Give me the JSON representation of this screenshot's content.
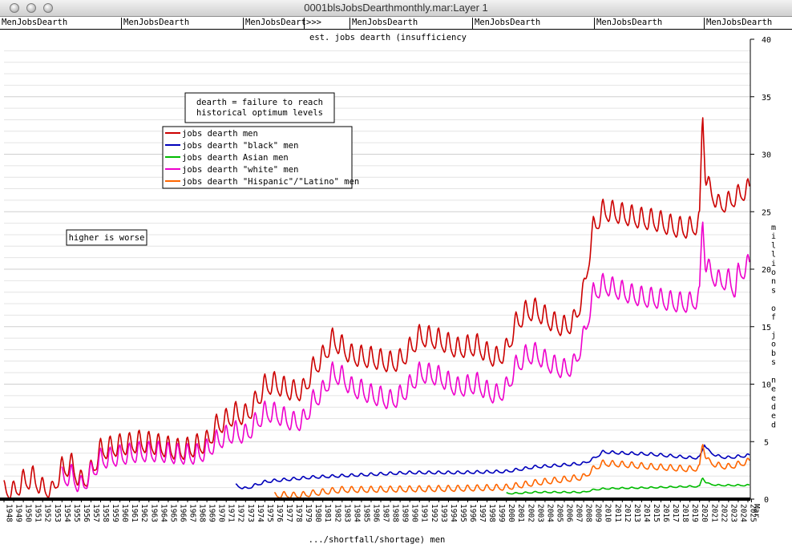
{
  "window": {
    "title": "0001blsJobsDearthmonthly.mar:Layer 1"
  },
  "tabs": [
    {
      "label": "MenJobsDearth"
    },
    {
      "label": "MenJobsDearth"
    },
    {
      "label": "MenJobsDeart"
    },
    {
      "label": ">>>"
    },
    {
      "label": "MenJobsDearth"
    },
    {
      "label": "MenJobsDearth"
    },
    {
      "label": "MenJobsDearth"
    },
    {
      "label": "MenJobsDearth"
    }
  ],
  "chart_data": {
    "type": "line",
    "title": "est. jobs dearth (insufficiency",
    "xlabel": ".../shortfall/shortage) men",
    "ylabel": "millions of jobs needed",
    "ylim": [
      0,
      40
    ],
    "y_ticks": [
      0,
      5,
      10,
      15,
      20,
      25,
      30,
      35,
      40
    ],
    "x_start": 1948,
    "x_end": 2025.25,
    "x_tick_labels": [
      "1948",
      "1949",
      "1950",
      "1951",
      "1952",
      "1953",
      "1954",
      "1955",
      "1956",
      "1957",
      "1958",
      "1959",
      "1960",
      "1961",
      "1962",
      "1963",
      "1964",
      "1965",
      "1966",
      "1967",
      "1968",
      "1969",
      "1970",
      "1971",
      "1972",
      "1973",
      "1974",
      "1975",
      "1976",
      "1977",
      "1978",
      "1979",
      "1980",
      "1981",
      "1982",
      "1983",
      "1984",
      "1985",
      "1986",
      "1987",
      "1988",
      "1989",
      "1990",
      "1991",
      "1992",
      "1993",
      "1994",
      "1995",
      "1996",
      "1997",
      "1998",
      "1999",
      "2000",
      "2001",
      "2002",
      "2003",
      "2004",
      "2005",
      "2006",
      "2007",
      "2008",
      "2009",
      "2010",
      "2011",
      "2012",
      "2013",
      "2014",
      "2015",
      "2016",
      "2017",
      "2018",
      "2019",
      "2020",
      "2021",
      "2022",
      "2023",
      "2024",
      "2025",
      "Mar"
    ],
    "annotations": [
      {
        "text": "dearth = failure to reach historical optimum levels",
        "lines": [
          "dearth = failure to reach",
          "historical optimum levels"
        ]
      },
      {
        "text": "higher is worse",
        "lines": [
          "higher is worse"
        ]
      }
    ],
    "legend_position": "upper-left",
    "grid": true,
    "series": [
      {
        "name": "jobs dearth men",
        "color": "#cc0000",
        "years": [
          1948,
          1949,
          1950,
          1951,
          1952,
          1953,
          1954,
          1955,
          1956,
          1957,
          1958,
          1959,
          1960,
          1961,
          1962,
          1963,
          1964,
          1965,
          1966,
          1967,
          1968,
          1969,
          1970,
          1971,
          1972,
          1973,
          1974,
          1975,
          1976,
          1977,
          1978,
          1979,
          1980,
          1981,
          1982,
          1983,
          1984,
          1985,
          1986,
          1987,
          1988,
          1989,
          1990,
          1991,
          1992,
          1993,
          1994,
          1995,
          1996,
          1997,
          1998,
          1999,
          2000,
          2001,
          2002,
          2003,
          2004,
          2005,
          2006,
          2007,
          2008,
          2009,
          2010,
          2011,
          2012,
          2013,
          2014,
          2015,
          2016,
          2017,
          2018,
          2019,
          2020,
          2020.3,
          2020.6,
          2021,
          2022,
          2023,
          2024,
          2025.2
        ],
        "values": [
          0.8,
          0.6,
          1.5,
          1.8,
          0.9,
          0.7,
          2.6,
          2.9,
          1.4,
          2.3,
          4.2,
          4.4,
          4.6,
          4.7,
          4.9,
          4.8,
          4.6,
          4.4,
          4.2,
          4.3,
          4.6,
          4.9,
          6.3,
          6.8,
          7.4,
          7.2,
          8.3,
          9.8,
          10.0,
          9.6,
          9.3,
          9.4,
          11.3,
          12.3,
          13.8,
          13.2,
          12.4,
          12.3,
          12.2,
          12.0,
          11.8,
          12.0,
          13.0,
          14.1,
          14.0,
          13.8,
          13.4,
          13.0,
          13.2,
          13.3,
          12.6,
          12.2,
          12.9,
          15.2,
          16.2,
          16.4,
          15.8,
          15.2,
          14.9,
          15.4,
          18.0,
          23.5,
          25.0,
          24.9,
          24.7,
          24.5,
          24.3,
          24.2,
          24.0,
          23.7,
          23.5,
          23.5,
          24.0,
          34.0,
          28.0,
          27.0,
          25.5,
          25.8,
          26.4,
          27.0
        ],
        "amplitude": [
          0.7,
          0.8,
          0.9,
          0.9,
          0.8,
          0.7,
          0.9,
          0.9,
          0.9,
          0.9,
          0.9,
          0.9,
          0.9,
          0.9,
          0.9,
          0.9,
          0.9,
          0.9,
          0.9,
          0.9,
          0.9,
          0.9,
          0.9,
          0.9,
          0.9,
          0.9,
          0.9,
          0.9,
          0.9,
          0.9,
          0.9,
          0.9,
          0.9,
          0.9,
          0.9,
          0.9,
          0.9,
          0.9,
          0.9,
          0.9,
          0.9,
          0.9,
          0.9,
          0.9,
          0.9,
          0.9,
          0.9,
          0.9,
          0.9,
          0.9,
          0.9,
          0.9,
          0.9,
          0.9,
          0.9,
          0.9,
          0.9,
          0.9,
          0.9,
          0.9,
          0.9,
          0.9,
          0.9,
          0.9,
          0.9,
          0.9,
          0.9,
          0.9,
          0.9,
          0.9,
          0.9,
          0.9,
          0.9,
          0.3,
          0.7,
          0.8,
          0.8,
          0.8,
          0.8,
          0.8
        ]
      },
      {
        "name": "jobs dearth \"black\" men",
        "color": "#0000bb",
        "years": [
          1972,
          1973,
          1974,
          1975,
          1976,
          1980,
          1985,
          1990,
          1995,
          2000,
          2003,
          2005,
          2008,
          2009,
          2010,
          2012,
          2015,
          2019,
          2020,
          2020.5,
          2021,
          2022,
          2023,
          2024,
          2025.2
        ],
        "values": [
          1.2,
          0.9,
          1.2,
          1.5,
          1.6,
          1.9,
          2.1,
          2.3,
          2.3,
          2.4,
          2.8,
          2.9,
          3.1,
          3.5,
          4.1,
          4.0,
          3.9,
          3.6,
          3.6,
          4.8,
          4.1,
          3.7,
          3.6,
          3.7,
          3.8
        ],
        "amplitude": 0.12
      },
      {
        "name": "jobs dearth Asian men",
        "color": "#00bb00",
        "years": [
          2000,
          2001,
          2003,
          2005,
          2008,
          2009,
          2010,
          2012,
          2015,
          2019,
          2020,
          2020.3,
          2020.6,
          2021,
          2022,
          2023,
          2024,
          2025.2
        ],
        "values": [
          0.5,
          0.5,
          0.6,
          0.6,
          0.6,
          0.8,
          0.9,
          0.95,
          1.0,
          1.1,
          1.1,
          1.9,
          1.5,
          1.3,
          1.2,
          1.2,
          1.2,
          1.2
        ],
        "amplitude": 0.06
      },
      {
        "name": "jobs dearth \"white\" men",
        "color": "#ee00cc",
        "years": [
          1954,
          1955,
          1956,
          1957,
          1958,
          1959,
          1960,
          1962,
          1964,
          1966,
          1968,
          1969,
          1970,
          1971,
          1972,
          1973,
          1974,
          1975,
          1976,
          1977,
          1978,
          1979,
          1980,
          1981,
          1982,
          1983,
          1984,
          1985,
          1986,
          1987,
          1988,
          1989,
          1990,
          1991,
          1992,
          1993,
          1994,
          1995,
          1996,
          1997,
          1998,
          1999,
          2000,
          2001,
          2002,
          2003,
          2004,
          2005,
          2006,
          2007,
          2008,
          2009,
          2010,
          2011,
          2012,
          2013,
          2014,
          2015,
          2016,
          2017,
          2018,
          2019,
          2020,
          2020.3,
          2020.6,
          2021,
          2022,
          2023,
          2023.7,
          2024,
          2025.2
        ],
        "values": [
          1.8,
          2.0,
          1.0,
          2.2,
          3.4,
          3.5,
          3.7,
          4.0,
          4.0,
          3.8,
          3.8,
          4.2,
          5.0,
          5.4,
          5.8,
          5.5,
          6.5,
          7.5,
          7.4,
          7.0,
          6.6,
          6.8,
          8.5,
          9.3,
          10.9,
          10.6,
          9.6,
          9.4,
          9.0,
          8.8,
          8.5,
          8.9,
          9.8,
          10.9,
          10.8,
          10.6,
          10.1,
          9.6,
          9.8,
          10.0,
          9.3,
          9.0,
          9.6,
          11.5,
          12.4,
          12.6,
          12.0,
          11.5,
          11.2,
          11.6,
          14.0,
          17.8,
          18.6,
          18.3,
          18.0,
          17.7,
          17.5,
          17.4,
          17.3,
          17.1,
          17.0,
          17.0,
          17.5,
          25.0,
          20.5,
          19.8,
          18.9,
          19.0,
          18.2,
          19.5,
          20.4
        ],
        "amplitude": 0.85
      },
      {
        "name": "jobs dearth \"Hispanic\"/\"Latino\" men",
        "color": "#ff6600",
        "years": [
          1976,
          1977,
          1978,
          1979,
          1980,
          1983,
          1985,
          1990,
          1995,
          2000,
          2003,
          2005,
          2008,
          2009,
          2010,
          2012,
          2015,
          2019,
          2020,
          2020.3,
          2020.6,
          2021,
          2022,
          2023,
          2024,
          2025.2
        ],
        "values": [
          0.3,
          0.35,
          0.3,
          0.35,
          0.5,
          0.8,
          0.8,
          0.85,
          0.9,
          1.0,
          1.4,
          1.6,
          1.9,
          2.6,
          3.1,
          3.0,
          2.8,
          2.6,
          2.7,
          5.0,
          3.8,
          3.2,
          2.9,
          2.8,
          3.0,
          3.3
        ],
        "amplitude": 0.25
      }
    ]
  }
}
